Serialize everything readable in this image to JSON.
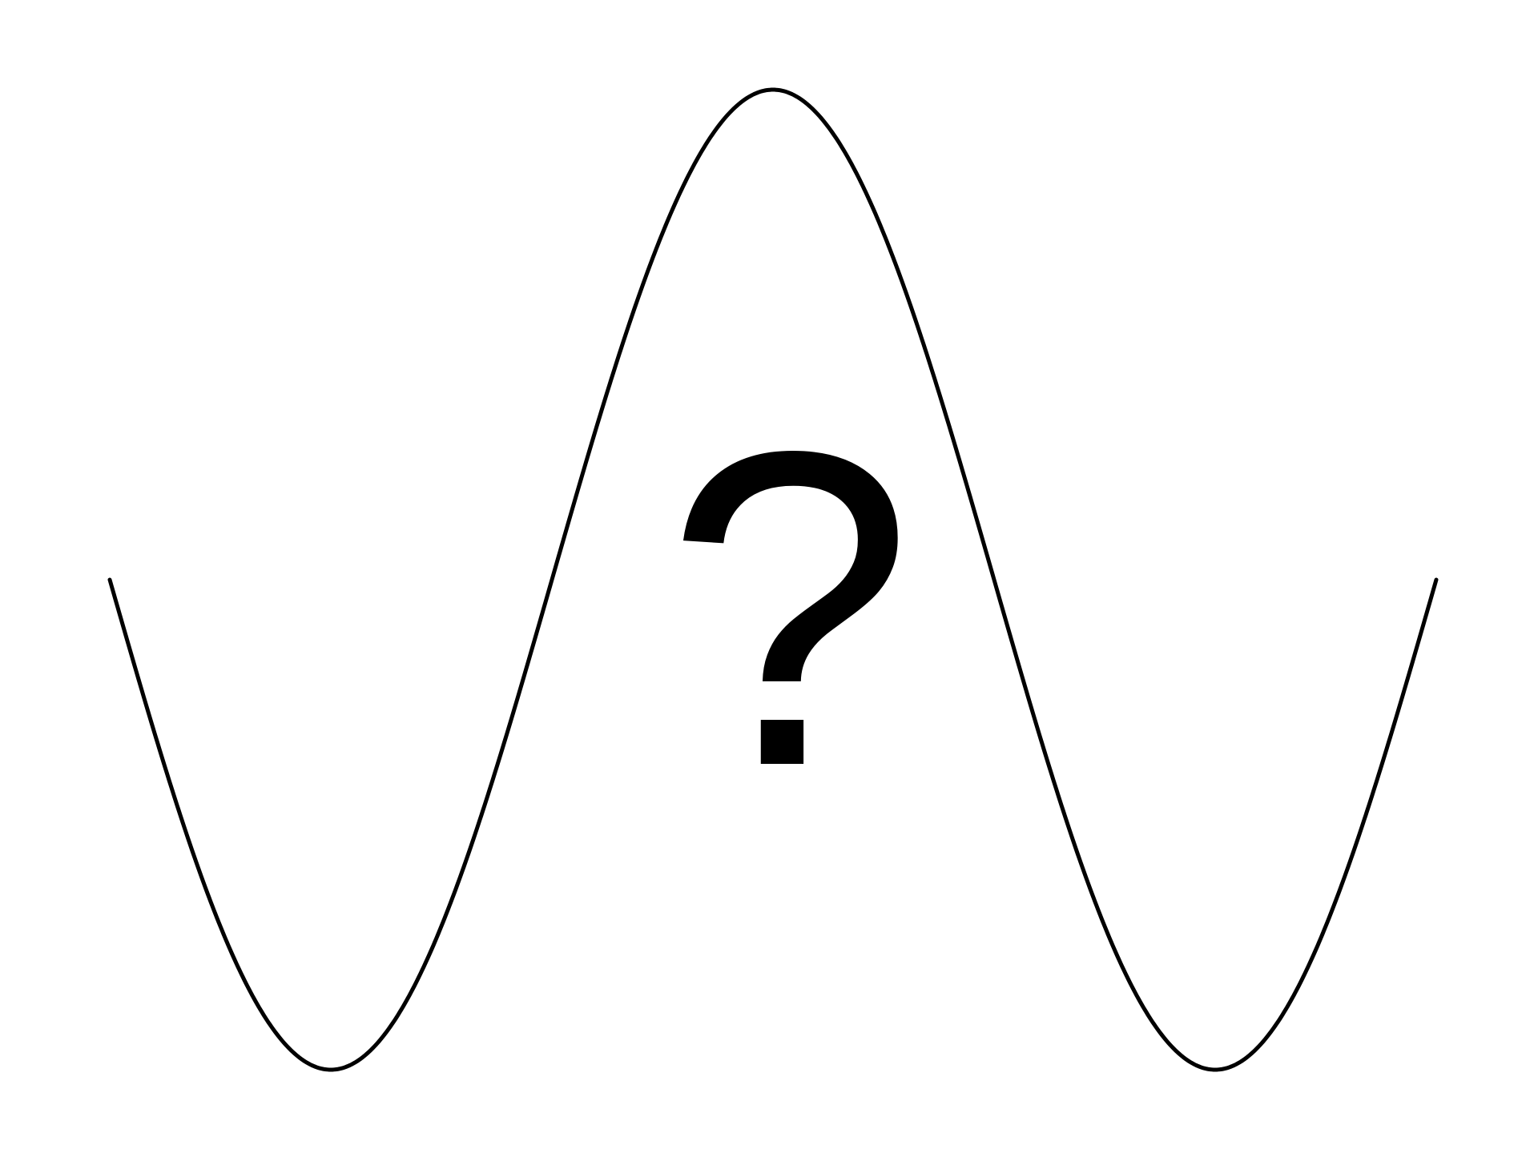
{
  "diagram": {
    "curve": {
      "shape": "sine wave",
      "color": "#000000",
      "start": "middle",
      "first_extremum": "trough",
      "second_extremum": "peak",
      "end": "middle"
    },
    "symbol": {
      "text": "?",
      "color": "#000000"
    }
  }
}
